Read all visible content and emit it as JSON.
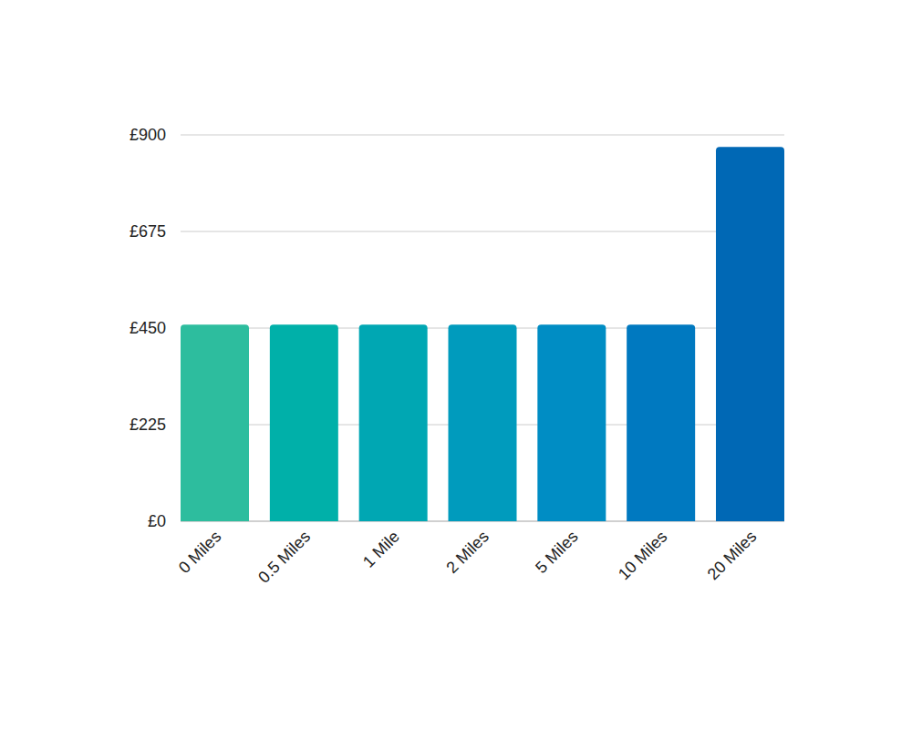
{
  "chart_data": {
    "type": "bar",
    "categories": [
      "0 Miles",
      "0.5 Miles",
      "1 Mile",
      "2 Miles",
      "5 Miles",
      "10 Miles",
      "20 Miles"
    ],
    "values": [
      458,
      458,
      458,
      458,
      458,
      458,
      872
    ],
    "colors": [
      "#2dbd9e",
      "#00b0a9",
      "#00a7b3",
      "#009bbd",
      "#008dc4",
      "#0079c0",
      "#0068b5"
    ],
    "ylim": [
      0,
      900
    ],
    "yticks": [
      {
        "value": 0,
        "label": "£0"
      },
      {
        "value": 225,
        "label": "£225"
      },
      {
        "value": 450,
        "label": "£450"
      },
      {
        "value": 675,
        "label": "£675"
      },
      {
        "value": 900,
        "label": "£900"
      }
    ],
    "grid": true
  }
}
